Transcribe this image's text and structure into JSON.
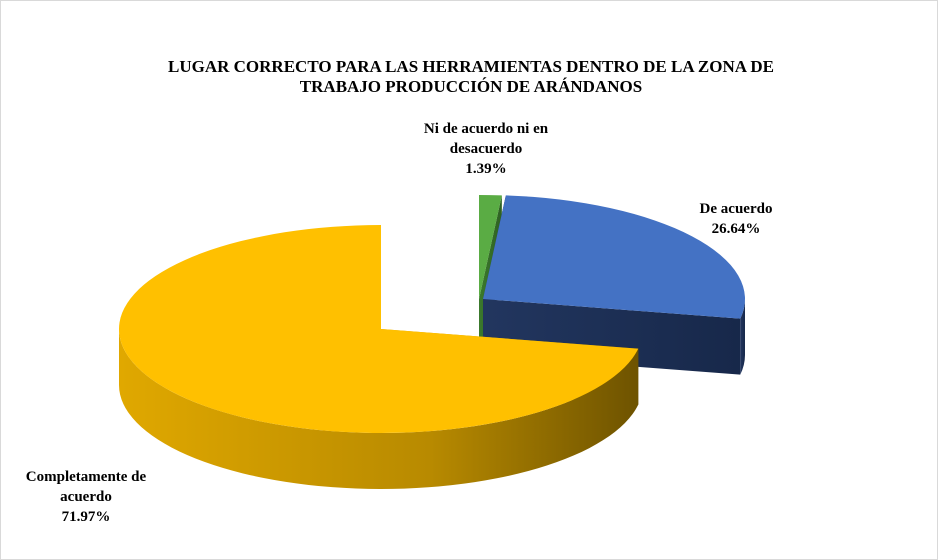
{
  "chart_data": {
    "type": "pie",
    "title": "LUGAR CORRECTO PARA LAS HERRAMIENTAS DENTRO DE LA ZONA DE TRABAJO PRODUCCIÓN DE ARÁNDANOS",
    "categories": [
      "Ni de acuerdo ni en desacuerdo",
      "De acuerdo",
      "Completamente de acuerdo"
    ],
    "values": [
      1.39,
      26.64,
      71.97
    ],
    "value_labels": [
      "1.39%",
      "26.64%",
      "71.97%"
    ],
    "colors": [
      "#5aac44",
      "#4472c4",
      "#ffc000"
    ]
  }
}
